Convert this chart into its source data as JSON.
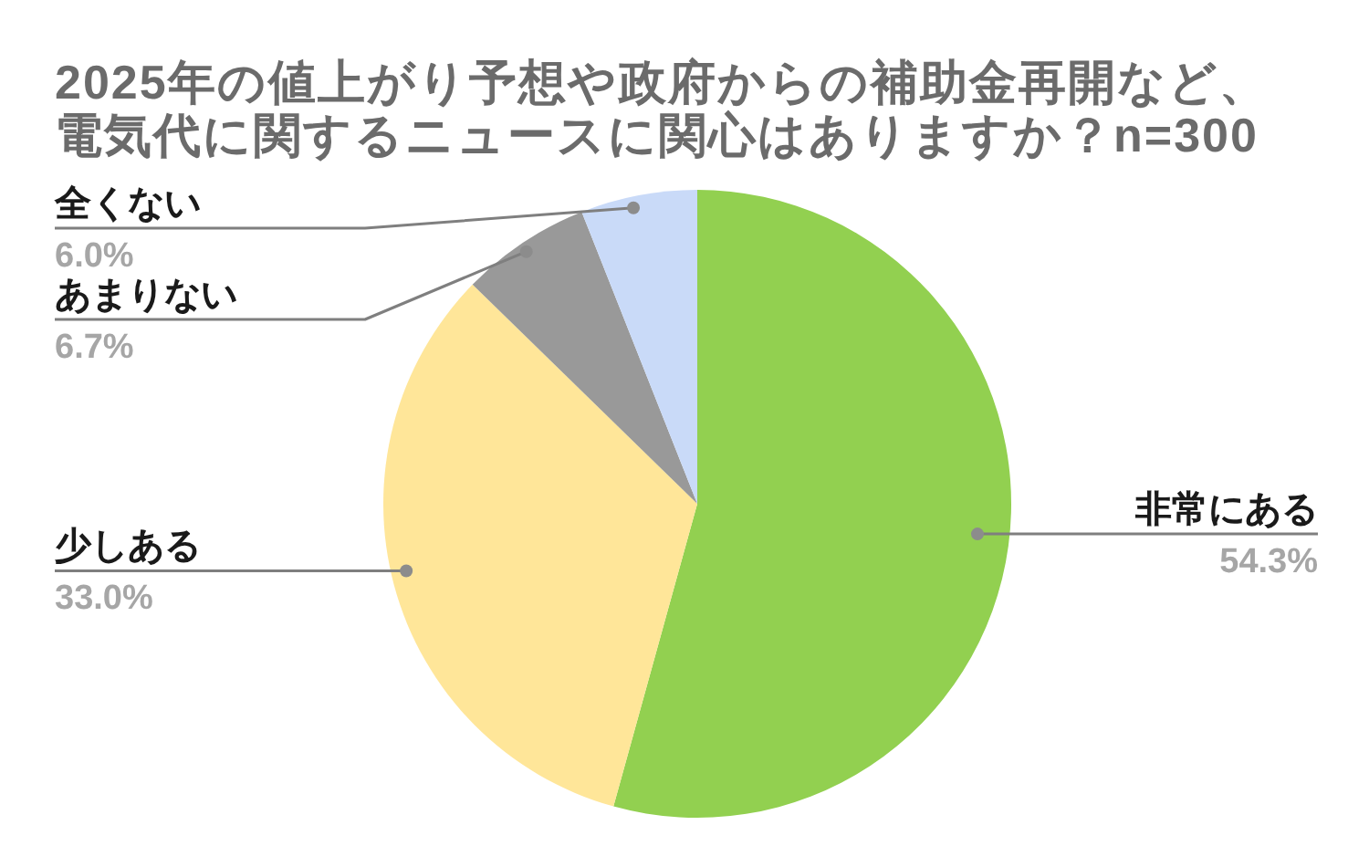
{
  "chart_data": {
    "type": "pie",
    "title": "2025年の値上がり予想や政府からの補助金再開など、電気代に関するニュースに関心はありますか？n=300",
    "categories": [
      "非常にある",
      "少しある",
      "あまりない",
      "全くない"
    ],
    "values": [
      54.3,
      33.0,
      6.7,
      6.0
    ],
    "colors": [
      "#92d050",
      "#ffe699",
      "#999999",
      "#c9daf8"
    ],
    "value_labels": [
      "54.3%",
      "33.0%",
      "6.7%",
      "6.0%"
    ]
  }
}
